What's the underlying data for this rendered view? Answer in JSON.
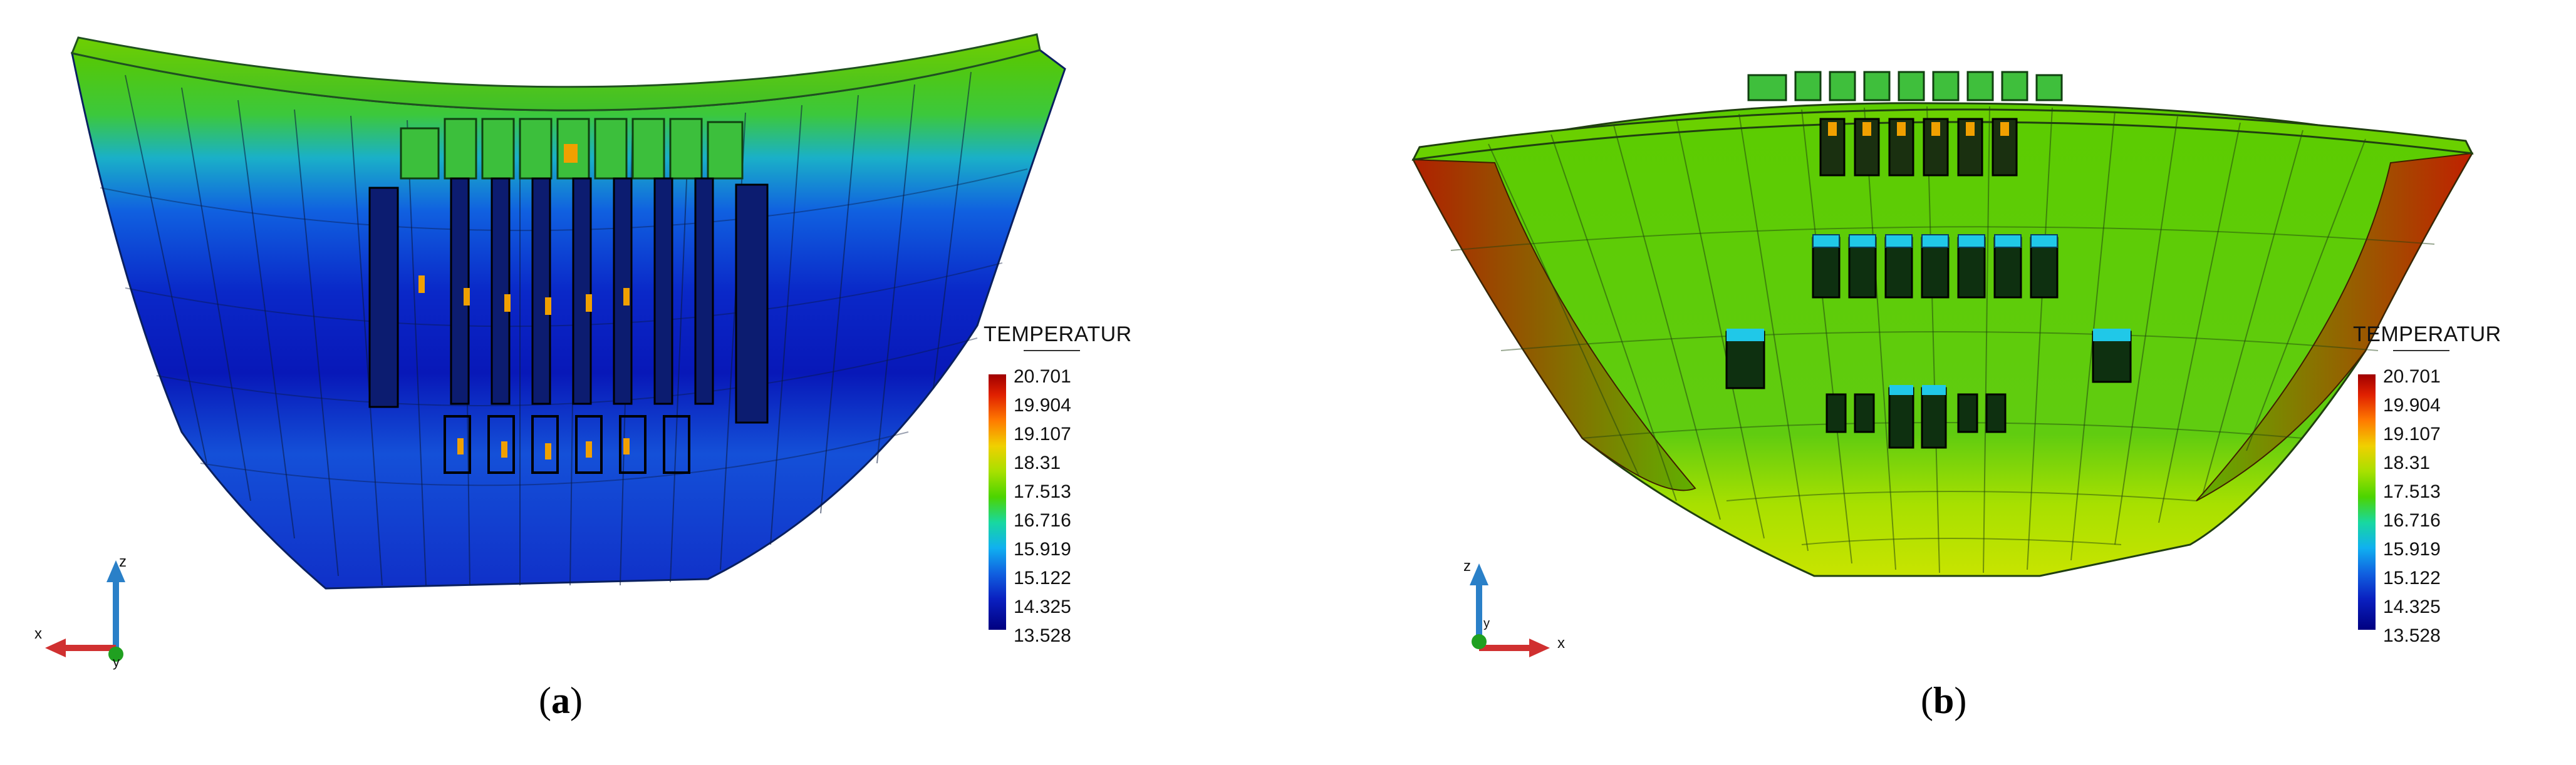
{
  "panels": [
    {
      "id": "a",
      "caption_open": "(",
      "caption_letter": "a",
      "caption_close": ")",
      "legend": {
        "title": "TEMPERATUR",
        "values": [
          "20.701",
          "19.904",
          "19.107",
          "18.31",
          "17.513",
          "16.716",
          "15.919",
          "15.122",
          "14.325",
          "13.528"
        ]
      },
      "axes": {
        "vertical": "z",
        "horizontal": "x",
        "depth": "y"
      }
    },
    {
      "id": "b",
      "caption_open": "(",
      "caption_letter": "b",
      "caption_close": ")",
      "legend": {
        "title": "TEMPERATUR",
        "values": [
          "20.701",
          "19.904",
          "19.107",
          "18.31",
          "17.513",
          "16.716",
          "15.919",
          "15.122",
          "14.325",
          "13.528"
        ]
      },
      "axes": {
        "vertical": "z",
        "horizontal": "x",
        "depth": "y"
      }
    }
  ],
  "colors": {
    "max": "#a00000",
    "high": "#ff7a00",
    "mid": "#4cd400",
    "low": "#10b0f0",
    "min": "#000080"
  }
}
